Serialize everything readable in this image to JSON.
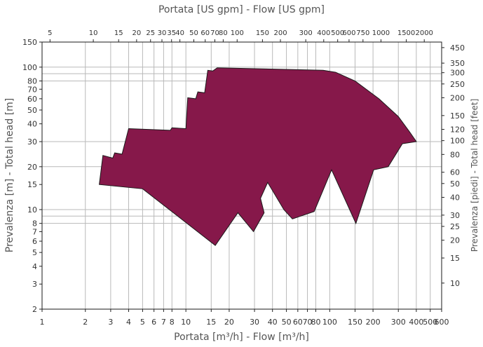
{
  "chart_data": {
    "type": "area",
    "title_top": "Portata [US gpm] - Flow [US gpm]",
    "xlabel": "Portata [m³/h] - Flow [m³/h]",
    "ylabel_left": "Prevalenza [m] - Total head [m]",
    "ylabel_right": "Prevalenza [piedi] - Total head [feet]",
    "x_scale": "log",
    "y_scale": "log",
    "xlim": [
      1,
      600
    ],
    "ylim": [
      2,
      150
    ],
    "fill_color": "#86184A",
    "grid": true,
    "x_ticks": [
      1,
      2,
      3,
      4,
      5,
      6,
      7,
      8,
      10,
      15,
      20,
      30,
      40,
      50,
      60,
      70,
      80,
      100,
      150,
      200,
      300,
      400,
      500,
      600
    ],
    "x_ticks_labels": [
      "1",
      "2",
      "3",
      "4",
      "5",
      "6",
      "7",
      "8",
      "10",
      "15",
      "20",
      "30",
      "40",
      "50",
      "60",
      "70",
      "80",
      "100",
      "150",
      "200",
      "300",
      "400",
      "500",
      "600"
    ],
    "x_major_grid": [
      2,
      3,
      4,
      5,
      6,
      7,
      8,
      10,
      15,
      20,
      30,
      40,
      50,
      60,
      70,
      80,
      100,
      150,
      200,
      300,
      400,
      500,
      600
    ],
    "top_ticks_usgpm": [
      5,
      10,
      15,
      20,
      25,
      30,
      35,
      40,
      50,
      60,
      70,
      80,
      100,
      150,
      200,
      300,
      400,
      500,
      600,
      750,
      1000,
      1500,
      2000
    ],
    "top_ticks_labels": [
      "5",
      "10",
      "15",
      "20",
      "25",
      "30",
      "35",
      "40",
      "50",
      "60",
      "70",
      "80",
      "100",
      "150",
      "200",
      "300",
      "400",
      "500",
      "600",
      "750",
      "1000",
      "1500",
      "2000"
    ],
    "y_ticks": [
      2,
      3,
      4,
      5,
      6,
      7,
      8,
      10,
      15,
      20,
      30,
      40,
      50,
      60,
      70,
      80,
      100,
      150
    ],
    "y_ticks_labels": [
      "2",
      "3",
      "4",
      "5",
      "6",
      "7",
      "8",
      "10",
      "15",
      "20",
      "30",
      "40",
      "50",
      "60",
      "70",
      "80",
      "100",
      "150"
    ],
    "y_major_grid": [
      8,
      9,
      10,
      20,
      30,
      80,
      90,
      100
    ],
    "right_ticks_feet": [
      10,
      15,
      20,
      25,
      30,
      40,
      50,
      60,
      80,
      100,
      120,
      150,
      200,
      250,
      300,
      350,
      450
    ],
    "right_ticks_labels": [
      "10",
      "15",
      "20",
      "25",
      "30",
      "40",
      "50",
      "60",
      "80",
      "100",
      "120",
      "150",
      "200",
      "250",
      "300",
      "350",
      "450"
    ],
    "envelope": [
      [
        2.5,
        15
      ],
      [
        2.65,
        24
      ],
      [
        3.1,
        23
      ],
      [
        3.2,
        25
      ],
      [
        3.6,
        24.5
      ],
      [
        4.0,
        37
      ],
      [
        7.8,
        36
      ],
      [
        8.0,
        37.5
      ],
      [
        10.0,
        37
      ],
      [
        10.3,
        61
      ],
      [
        11.7,
        60
      ],
      [
        12.1,
        67
      ],
      [
        13.5,
        66
      ],
      [
        14.2,
        95
      ],
      [
        15.4,
        94
      ],
      [
        16.5,
        99
      ],
      [
        90,
        95
      ],
      [
        110,
        92
      ],
      [
        150,
        80
      ],
      [
        220,
        60
      ],
      [
        300,
        45
      ],
      [
        360,
        35
      ],
      [
        400,
        30
      ],
      [
        320,
        29
      ],
      [
        255,
        20
      ],
      [
        202,
        19
      ],
      [
        152,
        8
      ],
      [
        103,
        19
      ],
      [
        78,
        9.7
      ],
      [
        55,
        8.6
      ],
      [
        48,
        10
      ],
      [
        37,
        15.5
      ],
      [
        33,
        12
      ],
      [
        35,
        9.5
      ],
      [
        29.5,
        7
      ],
      [
        23,
        9.5
      ],
      [
        16,
        5.6
      ],
      [
        5,
        14
      ],
      [
        2.5,
        15
      ]
    ]
  }
}
